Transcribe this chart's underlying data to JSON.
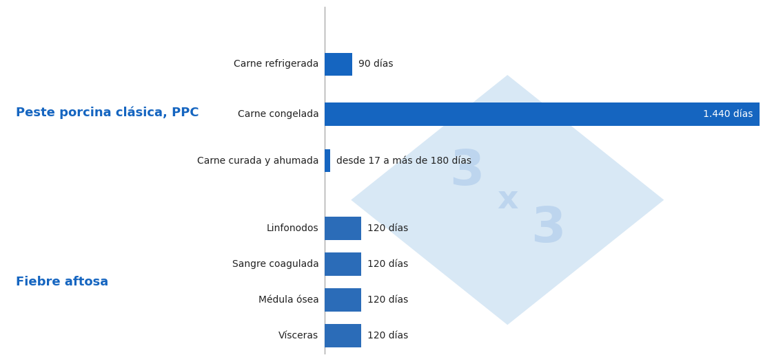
{
  "group1_label": "Peste porcina clásica, PPC",
  "group2_label": "Fiebre aftosa",
  "label_color": "#1565C0",
  "bar_color_ppc": "#1565C0",
  "bar_color_fa": "#2B6CB8",
  "separator_color": "#AAAAAA",
  "bg_color": "#ffffff",
  "watermark_color": "#D8E8F5",
  "watermark_text_color": "#BDD5EE",
  "categories_ppc": [
    "Carne refrigerada",
    "Carne congelada",
    "Carne curada y ahumada"
  ],
  "values_ppc": [
    90,
    1440,
    17
  ],
  "bar_labels_ppc": [
    "90 días",
    "1.440 días",
    "desde 17 a más de 180 días"
  ],
  "categories_fa": [
    "Linfonodos",
    "Sangre coagulada",
    "Médula ósea",
    "Vísceras"
  ],
  "values_fa": [
    120,
    120,
    120,
    120
  ],
  "bar_labels_fa": [
    "120 días",
    "120 días",
    "120 días",
    "120 días"
  ],
  "max_val": 1440,
  "label_fontsize": 10,
  "group_fontsize": 13,
  "bar_label_fontsize": 10,
  "figsize": [
    11.36,
    5.19
  ],
  "dpi": 100,
  "text_color": "#222222"
}
